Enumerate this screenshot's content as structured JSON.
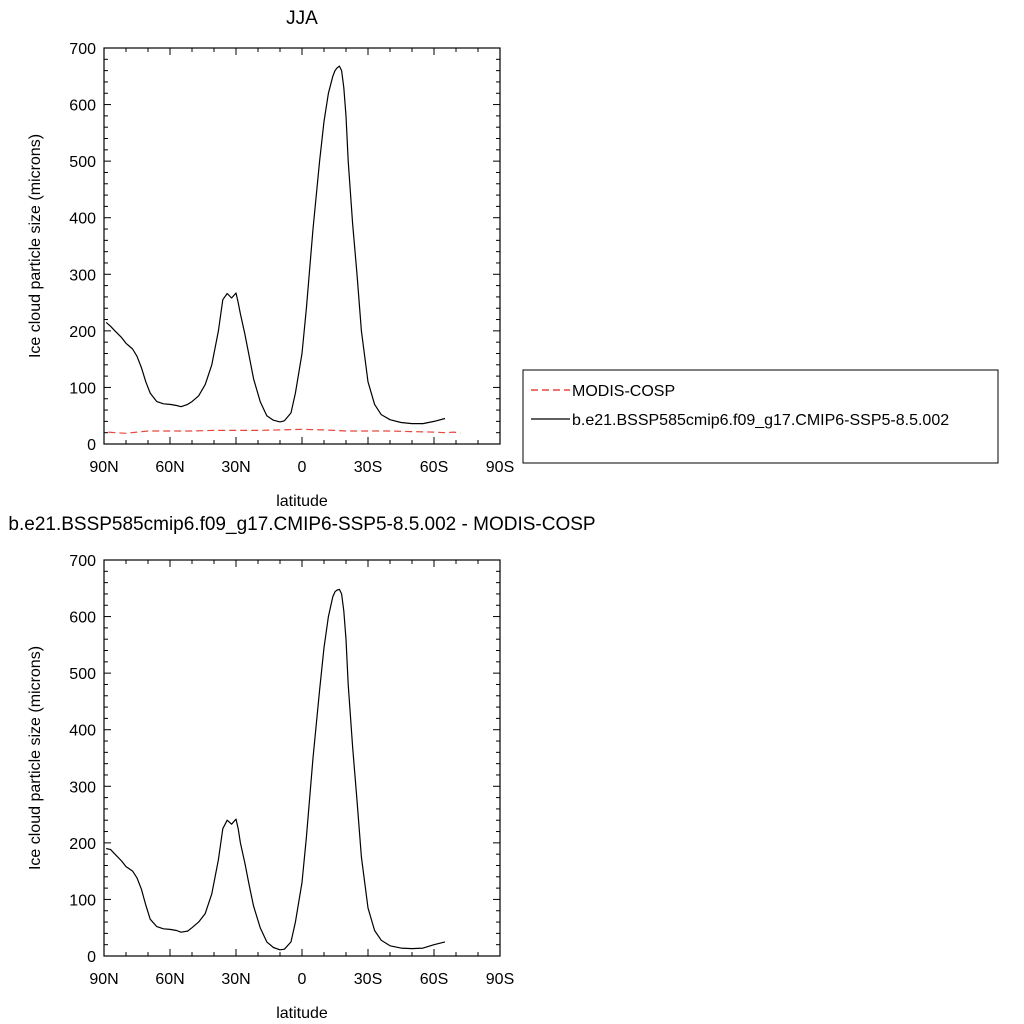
{
  "chart_data": [
    {
      "type": "line",
      "title": "JJA",
      "xlabel": "latitude",
      "ylabel": "Ice cloud particle size (microns)",
      "xlim": [
        90,
        -90
      ],
      "ylim": [
        0,
        700
      ],
      "x_ticks": [
        90,
        60,
        30,
        0,
        -30,
        -60,
        -90
      ],
      "x_tick_labels": [
        "90N",
        "60N",
        "30N",
        "0",
        "30S",
        "60S",
        "90S"
      ],
      "y_ticks": [
        0,
        100,
        200,
        300,
        400,
        500,
        600,
        700
      ],
      "y_tick_labels": [
        "0",
        "100",
        "200",
        "300",
        "400",
        "500",
        "600",
        "700"
      ],
      "legend": {
        "placement": "right",
        "entries": [
          {
            "label": "MODIS-COSP",
            "color": "#e8473d",
            "dash": "dashed"
          },
          {
            "label": "b.e21.BSSP585cmip6.f09_g17.CMIP6-SSP5-8.5.002",
            "color": "#000000",
            "dash": "solid"
          }
        ]
      },
      "series": [
        {
          "name": "MODIS-COSP",
          "color": "#e8473d",
          "dash": "dashed",
          "x": [
            88,
            85,
            80,
            75,
            70,
            60,
            50,
            40,
            30,
            20,
            10,
            0,
            -10,
            -20,
            -30,
            -40,
            -50,
            -60,
            -65,
            -69,
            -72
          ],
          "y": [
            21,
            20,
            19,
            21,
            23,
            23,
            23,
            24,
            24,
            24,
            25,
            26,
            25,
            23,
            23,
            23,
            22,
            21,
            20,
            21,
            19
          ]
        },
        {
          "name": "b.e21.BSSP585cmip6.f09_g17.CMIP6-SSP5-8.5.002",
          "color": "#000000",
          "dash": "solid",
          "x": [
            89,
            87,
            85,
            82,
            80,
            77,
            75,
            73,
            71,
            69,
            66,
            63,
            60,
            57,
            55,
            52,
            50,
            47,
            44,
            41,
            38,
            36,
            34,
            32,
            30,
            29,
            28,
            26,
            24,
            22,
            19,
            16,
            13,
            10,
            8,
            5,
            3,
            0,
            -2,
            -5,
            -8,
            -10,
            -12,
            -14,
            -15,
            -16,
            -17,
            -18,
            -19,
            -20,
            -21,
            -23,
            -25,
            -27,
            -30,
            -33,
            -36,
            -40,
            -45,
            -50,
            -55,
            -60,
            -65
          ],
          "y": [
            215,
            208,
            200,
            188,
            178,
            168,
            155,
            135,
            110,
            90,
            75,
            71,
            70,
            68,
            66,
            70,
            75,
            85,
            105,
            140,
            200,
            255,
            266,
            258,
            267,
            250,
            230,
            195,
            155,
            115,
            75,
            50,
            42,
            39,
            41,
            55,
            90,
            160,
            240,
            380,
            500,
            570,
            620,
            650,
            660,
            665,
            668,
            660,
            630,
            580,
            500,
            390,
            300,
            200,
            110,
            70,
            52,
            43,
            38,
            36,
            36,
            40,
            45
          ]
        }
      ]
    },
    {
      "type": "line",
      "title": "b.e21.BSSP585cmip6.f09_g17.CMIP6-SSP5-8.5.002 - MODIS-COSP",
      "xlabel": "latitude",
      "ylabel": "Ice cloud particle size (microns)",
      "xlim": [
        90,
        -90
      ],
      "ylim": [
        0,
        700
      ],
      "x_ticks": [
        90,
        60,
        30,
        0,
        -30,
        -60,
        -90
      ],
      "x_tick_labels": [
        "90N",
        "60N",
        "30N",
        "0",
        "30S",
        "60S",
        "90S"
      ],
      "y_ticks": [
        0,
        100,
        200,
        300,
        400,
        500,
        600,
        700
      ],
      "y_tick_labels": [
        "0",
        "100",
        "200",
        "300",
        "400",
        "500",
        "600",
        "700"
      ],
      "series": [
        {
          "color": "#000000",
          "dash": "solid",
          "x": [
            89,
            87,
            85,
            82,
            80,
            77,
            75,
            73,
            71,
            69,
            66,
            63,
            60,
            57,
            55,
            52,
            50,
            47,
            44,
            41,
            38,
            36,
            34,
            32,
            30,
            29,
            28,
            26,
            24,
            22,
            19,
            16,
            13,
            10,
            8,
            5,
            3,
            0,
            -2,
            -5,
            -8,
            -10,
            -12,
            -14,
            -15,
            -16,
            -17,
            -18,
            -19,
            -20,
            -21,
            -23,
            -25,
            -27,
            -30,
            -33,
            -36,
            -40,
            -45,
            -50,
            -55,
            -60,
            -65
          ],
          "y": [
            190,
            188,
            180,
            168,
            158,
            150,
            138,
            118,
            90,
            65,
            52,
            48,
            47,
            45,
            42,
            44,
            50,
            60,
            75,
            110,
            170,
            225,
            240,
            233,
            242,
            225,
            200,
            165,
            125,
            88,
            50,
            25,
            15,
            11,
            12,
            25,
            60,
            130,
            210,
            350,
            470,
            545,
            600,
            635,
            644,
            647,
            648,
            640,
            610,
            560,
            480,
            370,
            275,
            175,
            85,
            45,
            28,
            18,
            14,
            13,
            14,
            20,
            25
          ]
        }
      ]
    }
  ]
}
